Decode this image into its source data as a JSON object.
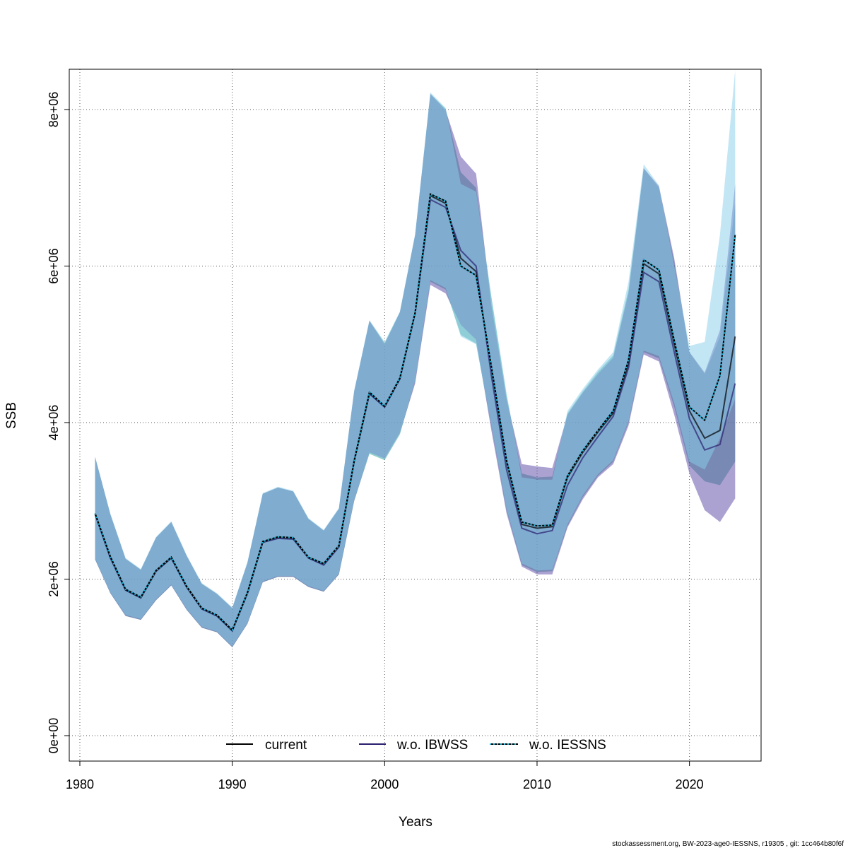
{
  "chart_data": {
    "type": "line",
    "xlabel": "Years",
    "ylabel": "SSB",
    "xlim": [
      1980,
      2024
    ],
    "ylim": [
      0,
      8500000
    ],
    "x_ticks": [
      {
        "value": 1980,
        "label": "1980"
      },
      {
        "value": 1990,
        "label": "1990"
      },
      {
        "value": 2000,
        "label": "2000"
      },
      {
        "value": 2010,
        "label": "2010"
      },
      {
        "value": 2020,
        "label": "2020"
      }
    ],
    "y_ticks": [
      {
        "value": 0,
        "label": "0e+00"
      },
      {
        "value": 2000000,
        "label": "2e+06"
      },
      {
        "value": 4000000,
        "label": "4e+06"
      },
      {
        "value": 6000000,
        "label": "6e+06"
      },
      {
        "value": 8000000,
        "label": "8e+06"
      }
    ],
    "grid": true,
    "legend_position": "bottom",
    "x": [
      1981,
      1982,
      1983,
      1984,
      1985,
      1986,
      1987,
      1988,
      1989,
      1990,
      1991,
      1992,
      1993,
      1994,
      1995,
      1996,
      1997,
      1998,
      1999,
      2000,
      2001,
      2002,
      2003,
      2004,
      2005,
      2006,
      2007,
      2008,
      2009,
      2010,
      2011,
      2012,
      2013,
      2014,
      2015,
      2016,
      2017,
      2018,
      2019,
      2020,
      2021,
      2022,
      2023
    ],
    "series": [
      {
        "name": "current",
        "color": "#000000",
        "line_style": "solid",
        "band_color": "#2e9e88",
        "values": [
          2830000,
          2280000,
          1860000,
          1760000,
          2100000,
          2270000,
          1900000,
          1620000,
          1530000,
          1340000,
          1820000,
          2470000,
          2530000,
          2520000,
          2270000,
          2190000,
          2420000,
          3500000,
          4370000,
          4200000,
          4560000,
          5400000,
          6900000,
          6800000,
          6100000,
          5930000,
          4700000,
          3500000,
          2700000,
          2650000,
          2670000,
          3300000,
          3620000,
          3880000,
          4120000,
          4750000,
          6030000,
          5900000,
          5000000,
          4150000,
          3800000,
          3900000,
          5100000
        ],
        "lower": [
          2250000,
          1820000,
          1530000,
          1480000,
          1730000,
          1920000,
          1610000,
          1380000,
          1320000,
          1130000,
          1430000,
          1960000,
          2030000,
          2030000,
          1900000,
          1840000,
          2060000,
          3000000,
          3600000,
          3520000,
          3850000,
          4530000,
          5800000,
          5700000,
          5120000,
          5010000,
          3960000,
          2880000,
          2180000,
          2090000,
          2100000,
          2680000,
          3050000,
          3320000,
          3500000,
          4000000,
          4900000,
          4820000,
          4200000,
          3450000,
          3250000,
          3200000,
          3500000
        ],
        "upper": [
          3560000,
          2830000,
          2260000,
          2120000,
          2530000,
          2730000,
          2300000,
          1940000,
          1810000,
          1630000,
          2210000,
          3090000,
          3170000,
          3120000,
          2770000,
          2620000,
          2900000,
          4400000,
          5300000,
          5020000,
          5410000,
          6400000,
          8200000,
          8010000,
          7200000,
          7000000,
          5600000,
          4350000,
          3350000,
          3300000,
          3310000,
          4120000,
          4400000,
          4650000,
          4860000,
          5700000,
          7250000,
          7000000,
          6050000,
          4900000,
          4620000,
          5100000,
          6800000
        ]
      },
      {
        "name": "w.o. IBWSS",
        "color": "#2a1f6e",
        "line_style": "solid",
        "band_color": "#5a45a6",
        "values": [
          2830000,
          2270000,
          1860000,
          1760000,
          2100000,
          2270000,
          1900000,
          1620000,
          1530000,
          1340000,
          1820000,
          2470000,
          2520000,
          2510000,
          2270000,
          2180000,
          2410000,
          3520000,
          4370000,
          4200000,
          4560000,
          5400000,
          6850000,
          6750000,
          6200000,
          6000000,
          4600000,
          3400000,
          2650000,
          2580000,
          2620000,
          3200000,
          3550000,
          3820000,
          4080000,
          4700000,
          5920000,
          5800000,
          4900000,
          4050000,
          3650000,
          3720000,
          4500000
        ],
        "lower": [
          2250000,
          1820000,
          1530000,
          1480000,
          1730000,
          1920000,
          1610000,
          1380000,
          1320000,
          1130000,
          1430000,
          1960000,
          2030000,
          2030000,
          1900000,
          1840000,
          2060000,
          3000000,
          3620000,
          3540000,
          3870000,
          4500000,
          5760000,
          5650000,
          5250000,
          5060000,
          3900000,
          2840000,
          2160000,
          2060000,
          2060000,
          2660000,
          3020000,
          3300000,
          3470000,
          3960000,
          4870000,
          4780000,
          4100000,
          3350000,
          2880000,
          2730000,
          3030000
        ],
        "upper": [
          3560000,
          2830000,
          2260000,
          2120000,
          2530000,
          2730000,
          2300000,
          1940000,
          1810000,
          1630000,
          2210000,
          3090000,
          3170000,
          3120000,
          2770000,
          2620000,
          2900000,
          4400000,
          5300000,
          5000000,
          5410000,
          6400000,
          8200000,
          7990000,
          7400000,
          7180000,
          5500000,
          4300000,
          3470000,
          3440000,
          3420000,
          4100000,
          4380000,
          4620000,
          4830000,
          5650000,
          7250000,
          7020000,
          6100000,
          4900000,
          4640000,
          5180000,
          7050000
        ]
      },
      {
        "name": "w.o. IESSNS",
        "color": "#1fb6d8",
        "line_style": "dotted",
        "band_color": "#87ceeb",
        "values": [
          2840000,
          2290000,
          1870000,
          1770000,
          2110000,
          2280000,
          1910000,
          1630000,
          1540000,
          1350000,
          1830000,
          2480000,
          2540000,
          2530000,
          2280000,
          2200000,
          2430000,
          3510000,
          4390000,
          4210000,
          4570000,
          5410000,
          6920000,
          6830000,
          6000000,
          5880000,
          4720000,
          3520000,
          2730000,
          2680000,
          2690000,
          3320000,
          3640000,
          3900000,
          4150000,
          4800000,
          6080000,
          5950000,
          5050000,
          4200000,
          4030000,
          4600000,
          6400000
        ],
        "lower": [
          2260000,
          1830000,
          1540000,
          1490000,
          1740000,
          1930000,
          1620000,
          1390000,
          1330000,
          1140000,
          1440000,
          1970000,
          2040000,
          2040000,
          1910000,
          1850000,
          2070000,
          3010000,
          3610000,
          3530000,
          3860000,
          4540000,
          5820000,
          5720000,
          5100000,
          5000000,
          3980000,
          2900000,
          2200000,
          2110000,
          2120000,
          2700000,
          3070000,
          3340000,
          3520000,
          4020000,
          4920000,
          4850000,
          4250000,
          3500000,
          3400000,
          3800000,
          4300000
        ],
        "upper": [
          3560000,
          2840000,
          2270000,
          2130000,
          2540000,
          2740000,
          2310000,
          1950000,
          1820000,
          1640000,
          2220000,
          3100000,
          3180000,
          3130000,
          2780000,
          2630000,
          2910000,
          4410000,
          5310000,
          5030000,
          5420000,
          6410000,
          8220000,
          8020000,
          7050000,
          6950000,
          5620000,
          4380000,
          3300000,
          3270000,
          3270000,
          4150000,
          4430000,
          4680000,
          4900000,
          5800000,
          7300000,
          7030000,
          6000000,
          4980000,
          5030000,
          6400000,
          8800000
        ]
      }
    ]
  },
  "footer": "stockassessment.org, BW-2023-age0-IESSNS, r19305 , git: 1cc464b80f6f"
}
